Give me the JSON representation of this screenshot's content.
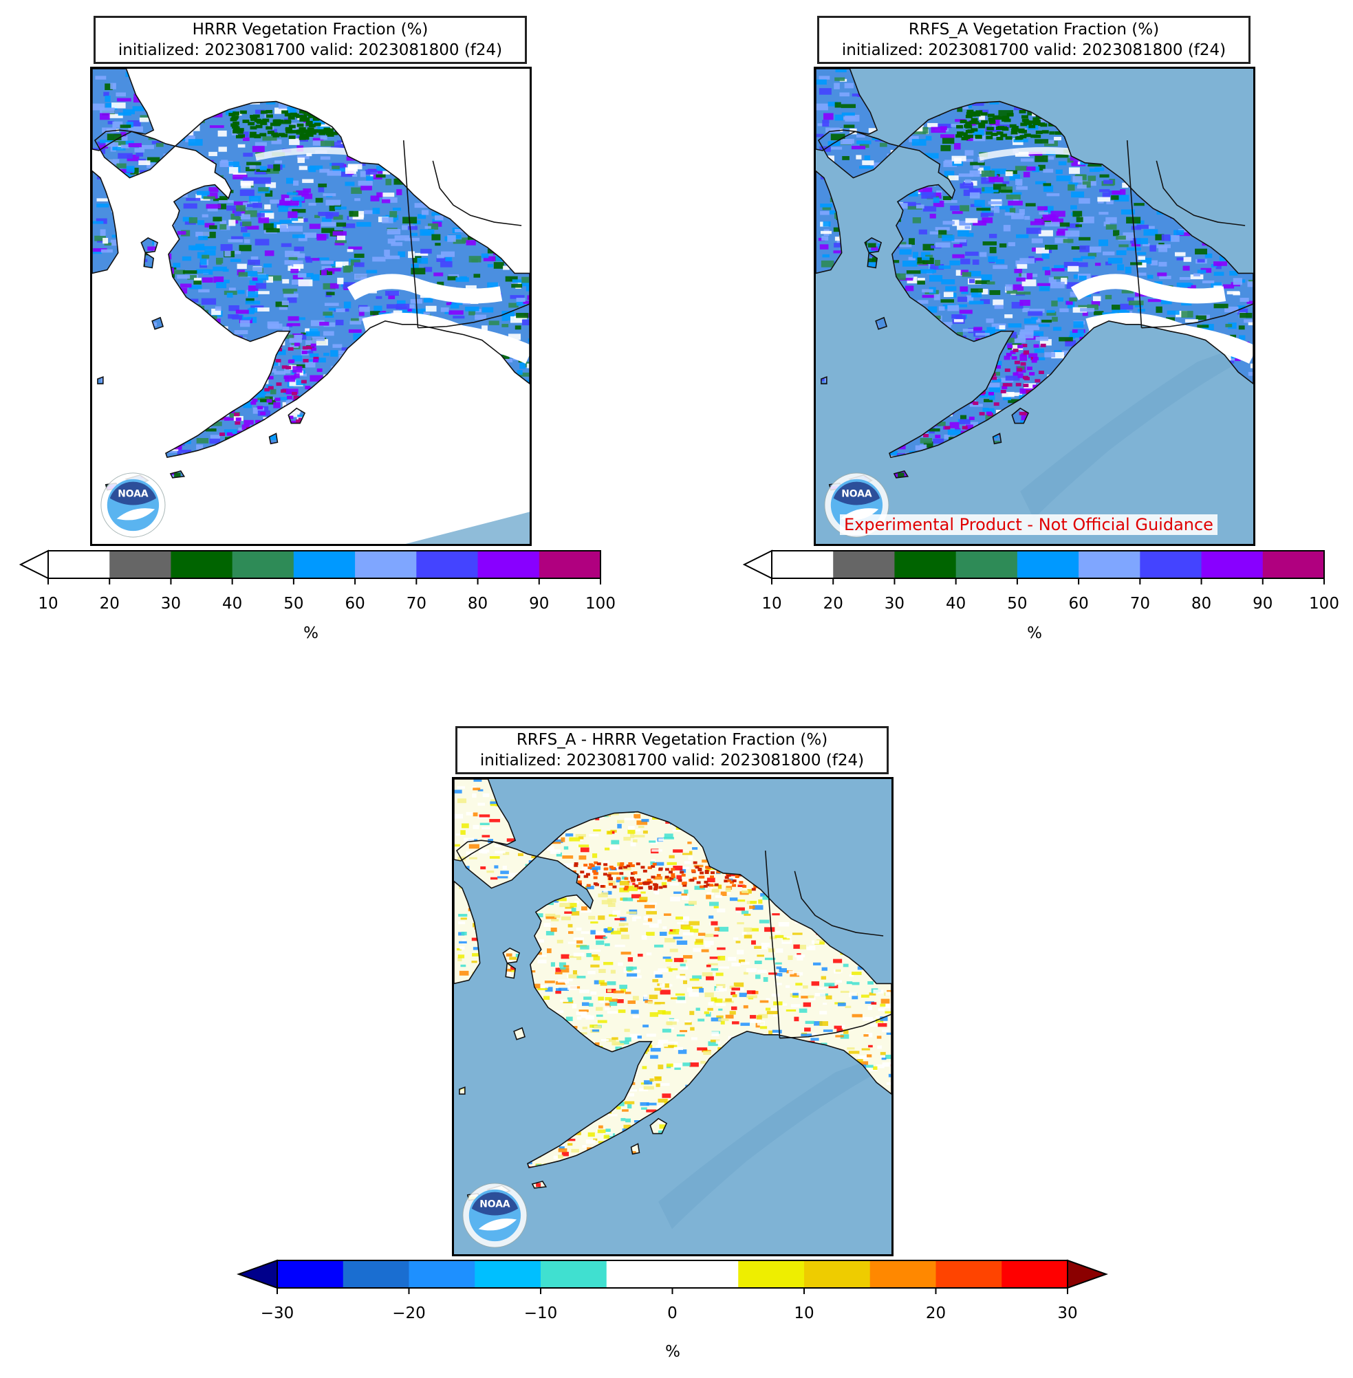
{
  "panels": [
    {
      "id": "hrrr",
      "title_line1": "HRRR Vegetation Fraction (%)",
      "title_line2": "initialized: 2023081700 valid: 2023081800 (f24)",
      "ocean_color": "#ffffff",
      "logo_text": "NOAA"
    },
    {
      "id": "rrfs",
      "title_line1": "RRFS_A Vegetation Fraction (%)",
      "title_line2": "initialized: 2023081700 valid: 2023081800 (f24)",
      "ocean_color": "#7fb3d5",
      "logo_text": "NOAA",
      "disclaimer": "Experimental Product - Not Official Guidance"
    },
    {
      "id": "diff",
      "title_line1": "RRFS_A - HRRR Vegetation Fraction (%)",
      "title_line2": "initialized: 2023081700 valid: 2023081800 (f24)",
      "ocean_color": "#7fb3d5",
      "logo_text": "NOAA"
    }
  ],
  "veg_colorbar": {
    "unit": "%",
    "ticks": [
      "10",
      "20",
      "30",
      "40",
      "50",
      "60",
      "70",
      "80",
      "90",
      "100"
    ],
    "under_color": "#ffffff",
    "colors": [
      "#ffffff",
      "#666666",
      "#006400",
      "#2e8b57",
      "#0099ff",
      "#7fa6ff",
      "#4444ff",
      "#8800ff",
      "#b0007f"
    ]
  },
  "diff_colorbar": {
    "unit": "%",
    "ticks": [
      "−30",
      "−20",
      "−10",
      "0",
      "10",
      "20",
      "30"
    ],
    "under_color": "#00008b",
    "over_color": "#8b0000",
    "colors": [
      "#0000ff",
      "#1a6ed1",
      "#1e90ff",
      "#00bfff",
      "#40e0d0",
      "#ffffff",
      "#ffffff",
      "#eeee00",
      "#eecc00",
      "#ff8800",
      "#ff4400",
      "#ff0000"
    ]
  }
}
